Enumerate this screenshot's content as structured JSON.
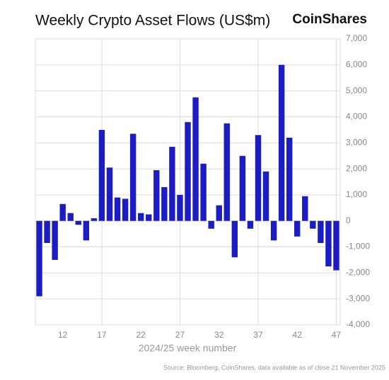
{
  "chart_data": {
    "type": "bar",
    "title": "Weekly Crypto Asset Flows (US$m)",
    "brand": "CoinShares",
    "x_label": "2024/25 week number",
    "source": "Source: Bloomberg, CoinShares, data available as of close 21 November 2025",
    "categories": [
      null,
      null,
      null,
      "12",
      null,
      null,
      null,
      null,
      "17",
      null,
      null,
      null,
      null,
      "22",
      null,
      null,
      null,
      null,
      "27",
      null,
      null,
      null,
      null,
      "32",
      null,
      null,
      null,
      null,
      "37",
      null,
      null,
      null,
      null,
      "42",
      null,
      null,
      null,
      null,
      "47"
    ],
    "values": [
      -2900,
      -850,
      -1500,
      650,
      300,
      -150,
      -750,
      100,
      3500,
      2050,
      900,
      850,
      3350,
      300,
      250,
      1950,
      1300,
      2850,
      1000,
      3800,
      4750,
      2200,
      -300,
      600,
      3750,
      -1400,
      2500,
      -300,
      3300,
      1900,
      -750,
      6000,
      3200,
      -600,
      950,
      -300,
      -850,
      -1750,
      -1900
    ],
    "color": "#1c1cc4",
    "ylim": [
      -4000,
      7000
    ],
    "yticks": [
      {
        "value": -4000,
        "label": "-4,000"
      },
      {
        "value": -3000,
        "label": "-3,000"
      },
      {
        "value": -2000,
        "label": "-2,000"
      },
      {
        "value": -1000,
        "label": "-1,000"
      },
      0,
      {
        "value": 1000,
        "label": "1,000"
      },
      {
        "value": 2000,
        "label": "2,000"
      },
      {
        "value": 3000,
        "label": "3,000"
      },
      {
        "value": 4000,
        "label": "4,000"
      },
      {
        "value": 5000,
        "label": "5,000"
      },
      {
        "value": 6000,
        "label": "6,000"
      },
      {
        "value": 7000,
        "label": "7,000"
      }
    ],
    "grid": true
  }
}
